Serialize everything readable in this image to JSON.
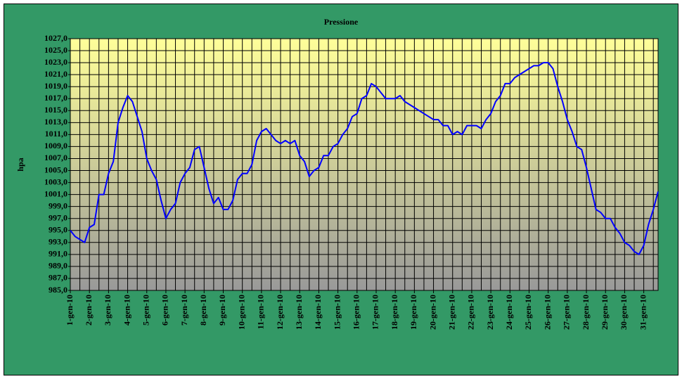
{
  "chart_data": {
    "type": "line",
    "title": "Pressione",
    "y_label": "hpa",
    "color": "#0000ff",
    "grid": true,
    "categories": [
      "1-gen-10",
      null,
      null,
      null,
      "2-gen-10",
      null,
      null,
      null,
      "3-gen-10",
      null,
      null,
      null,
      "4-gen-10",
      null,
      null,
      null,
      "5-gen-10",
      null,
      null,
      null,
      "6-gen-10",
      null,
      null,
      null,
      "7-gen-10",
      null,
      null,
      null,
      "8-gen-10",
      null,
      null,
      null,
      "9-gen-10",
      null,
      null,
      null,
      "10-gen-10",
      null,
      null,
      null,
      "11-gen-10",
      null,
      null,
      null,
      "12-gen-10",
      null,
      null,
      null,
      "13-gen-10",
      null,
      null,
      null,
      "14-gen-10",
      null,
      null,
      null,
      "15-gen-10",
      null,
      null,
      null,
      "16-gen-10",
      null,
      null,
      null,
      "17-gen-10",
      null,
      null,
      null,
      "18-gen-10",
      null,
      null,
      null,
      "19-gen-10",
      null,
      null,
      null,
      "20-gen-10",
      null,
      null,
      null,
      "21-gen-10",
      null,
      null,
      null,
      "22-gen-10",
      null,
      null,
      null,
      "23-gen-10",
      null,
      null,
      null,
      "24-gen-10",
      null,
      null,
      null,
      "25-gen-10",
      null,
      null,
      null,
      "26-gen-10",
      null,
      null,
      null,
      "27-gen-10",
      null,
      null,
      null,
      "28-gen-10",
      null,
      null,
      null,
      "29-gen-10",
      null,
      null,
      null,
      "30-gen-10",
      null,
      null,
      null,
      "31-gen-10",
      null,
      null,
      null
    ],
    "values": [
      995,
      994,
      993.5,
      993,
      995.5,
      996,
      1001,
      1001,
      1004.5,
      1006.5,
      1013,
      1015.5,
      1017.5,
      1016.5,
      1014,
      1011.5,
      1007,
      1005,
      1003.5,
      1000,
      997,
      998.5,
      999.5,
      1003,
      1004.5,
      1005.5,
      1008.5,
      1009,
      1005.5,
      1002,
      999.5,
      1000.5,
      998.5,
      998.5,
      1000,
      1003.5,
      1004.5,
      1004.5,
      1006,
      1010,
      1011.5,
      1012,
      1011,
      1010,
      1009.5,
      1010,
      1009.5,
      1010,
      1007.5,
      1006.5,
      1004,
      1005,
      1005.5,
      1007.5,
      1007.5,
      1009,
      1009.5,
      1011,
      1012,
      1014,
      1014.5,
      1017,
      1017.5,
      1019.5,
      1019,
      1018,
      1017,
      1017,
      1017,
      1017.5,
      1016.5,
      1016,
      1015.5,
      1015,
      1014.5,
      1014,
      1013.5,
      1013.5,
      1012.5,
      1012.5,
      1011,
      1011.5,
      1011,
      1012.5,
      1012.5,
      1012.5,
      1012,
      1013.5,
      1014.5,
      1016.5,
      1017.5,
      1019.5,
      1019.5,
      1020.5,
      1021,
      1021.5,
      1022,
      1022.5,
      1022.5,
      1023,
      1023,
      1022,
      1019,
      1016.5,
      1013.5,
      1011.5,
      1009,
      1008.5,
      1005.5,
      1002,
      998.5,
      998,
      997,
      997,
      995.5,
      994.5,
      993,
      992.5,
      991.5,
      991,
      992.5,
      996,
      998.5,
      1001.5
    ],
    "ylim": [
      985,
      1027
    ],
    "yticks": [
      {
        "value": 985,
        "label": "985,0"
      },
      {
        "value": 987,
        "label": "987,0"
      },
      {
        "value": 989,
        "label": "989,0"
      },
      {
        "value": 991,
        "label": "991,0"
      },
      {
        "value": 993,
        "label": "993,0"
      },
      {
        "value": 995,
        "label": "995,0"
      },
      {
        "value": 997,
        "label": "997,0"
      },
      {
        "value": 999,
        "label": "999,0"
      },
      {
        "value": 1001,
        "label": "1001,0"
      },
      {
        "value": 1003,
        "label": "1003,0"
      },
      {
        "value": 1005,
        "label": "1005,0"
      },
      {
        "value": 1007,
        "label": "1007,0"
      },
      {
        "value": 1009,
        "label": "1009,0"
      },
      {
        "value": 1011,
        "label": "1011,0"
      },
      {
        "value": 1013,
        "label": "1013,0"
      },
      {
        "value": 1015,
        "label": "1015,0"
      },
      {
        "value": 1017,
        "label": "1017,0"
      },
      {
        "value": 1019,
        "label": "1019,0"
      },
      {
        "value": 1021,
        "label": "1021,0"
      },
      {
        "value": 1023,
        "label": "1023,0"
      },
      {
        "value": 1025,
        "label": "1025,0"
      },
      {
        "value": 1027,
        "label": "1027,0"
      }
    ]
  }
}
